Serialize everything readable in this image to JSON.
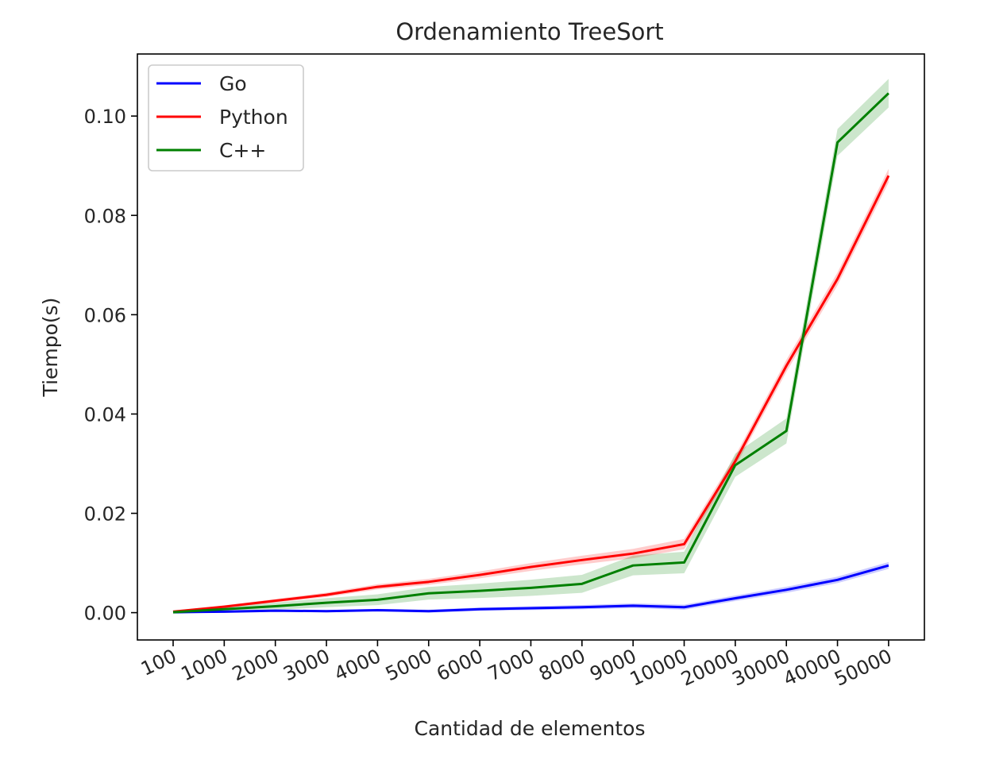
{
  "chart_data": {
    "type": "line",
    "title": "Ordenamiento TreeSort",
    "xlabel": "Cantidad de elementos",
    "ylabel": "Tiempo(s)",
    "categories": [
      "100",
      "1000",
      "2000",
      "3000",
      "4000",
      "5000",
      "6000",
      "7000",
      "8000",
      "9000",
      "10000",
      "20000",
      "30000",
      "40000",
      "50000"
    ],
    "ylim": [
      -0.0055,
      0.1125
    ],
    "yticks": [
      0.0,
      0.02,
      0.04,
      0.06,
      0.08,
      0.1
    ],
    "ytick_labels": [
      "0.00",
      "0.02",
      "0.04",
      "0.06",
      "0.08",
      "0.10"
    ],
    "grid": false,
    "legend_position": "top-left",
    "series": [
      {
        "name": "Go",
        "color": "#0000ff",
        "values": [
          0.0001,
          0.0002,
          0.0004,
          0.0003,
          0.0005,
          0.0003,
          0.0007,
          0.0009,
          0.0011,
          0.0014,
          0.0011,
          0.0029,
          0.0046,
          0.0066,
          0.0095
        ],
        "band": 0.0006
      },
      {
        "name": "Python",
        "color": "#ff0000",
        "values": [
          0.0002,
          0.0012,
          0.0024,
          0.0036,
          0.0052,
          0.0062,
          0.0076,
          0.0092,
          0.0106,
          0.0119,
          0.0138,
          0.0305,
          0.0497,
          0.0672,
          0.088
        ],
        "band": 0.0012
      },
      {
        "name": "C++",
        "color": "#008000",
        "values": [
          0.0001,
          0.0007,
          0.0013,
          0.002,
          0.0026,
          0.0039,
          0.0044,
          0.005,
          0.0058,
          0.0095,
          0.0101,
          0.0297,
          0.0366,
          0.0947,
          0.1046
        ],
        "band": 0.0025
      }
    ]
  }
}
